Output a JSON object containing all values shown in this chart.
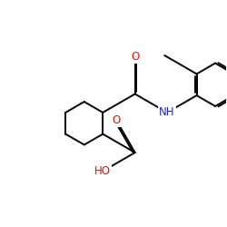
{
  "bg_color": "#ffffff",
  "atom_colors": {
    "O": "#ff0000",
    "N": "#2222cc",
    "C": "#000000"
  },
  "bond_lw": 1.4,
  "font_size": 8.5
}
